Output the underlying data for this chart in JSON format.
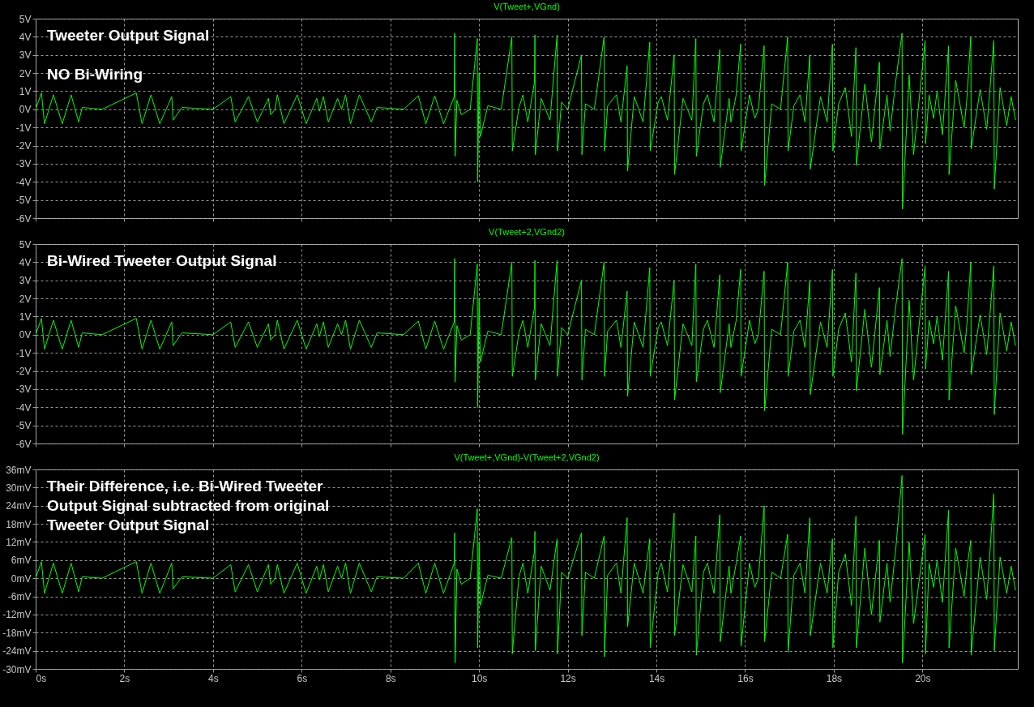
{
  "chart_data": [
    {
      "type": "line",
      "title": "V(Tweet+,VGnd)",
      "annotations": [
        "Tweeter Output Signal",
        "NO Bi-Wiring"
      ],
      "grid": true,
      "tick_labels": "y",
      "xlim": [
        0,
        22.15
      ],
      "xticks": [
        {
          "value": 0,
          "label": null
        },
        {
          "value": 2,
          "label": null
        },
        {
          "value": 4,
          "label": null
        },
        {
          "value": 6,
          "label": null
        },
        {
          "value": 8,
          "label": null
        },
        {
          "value": 10,
          "label": null
        },
        {
          "value": 12,
          "label": null
        },
        {
          "value": 14,
          "label": null
        },
        {
          "value": 16,
          "label": null
        },
        {
          "value": 18,
          "label": null
        },
        {
          "value": 20,
          "label": null
        }
      ],
      "ylim": [
        -6,
        5
      ],
      "yticks": [
        {
          "value": 5,
          "label": "5V"
        },
        {
          "value": 4,
          "label": "4V"
        },
        {
          "value": 3,
          "label": "3V"
        },
        {
          "value": 2,
          "label": "2V"
        },
        {
          "value": 1,
          "label": "1V"
        },
        {
          "value": 0,
          "label": "0V"
        },
        {
          "value": -1,
          "label": "-1V"
        },
        {
          "value": -2,
          "label": "-2V"
        },
        {
          "value": -3,
          "label": "-3V"
        },
        {
          "value": -4,
          "label": "-4V"
        },
        {
          "value": -5,
          "label": "-5V"
        },
        {
          "value": -6,
          "label": "-6V"
        }
      ],
      "x": [
        0,
        0.13,
        0.2,
        0.4,
        0.6,
        0.8,
        0.97,
        1.05,
        1.5,
        2.27,
        2.4,
        2.6,
        2.8,
        3.07,
        3.1,
        3.3,
        4.0,
        4.4,
        4.5,
        4.8,
        5.0,
        5.25,
        5.3,
        5.4,
        5.45,
        5.6,
        5.9,
        6.1,
        6.34,
        6.4,
        6.49,
        6.6,
        6.81,
        6.9,
        6.99,
        7.1,
        7.3,
        7.57,
        7.7,
        8.3,
        8.63,
        8.8,
        9.0,
        9.2,
        9.44,
        9.45,
        9.46,
        9.5,
        9.6,
        9.8,
        9.96,
        9.97,
        10.0,
        10.03,
        10.2,
        10.5,
        10.74,
        10.75,
        10.9,
        10.99,
        11.1,
        11.25,
        11.26,
        11.27,
        11.4,
        11.6,
        11.76,
        11.77,
        11.86,
        12.0,
        12.31,
        12.32,
        12.4,
        12.6,
        12.82,
        12.83,
        12.9,
        13.1,
        13.2,
        13.34,
        13.35,
        13.5,
        13.7,
        13.85,
        13.86,
        14.04,
        14.11,
        14.25,
        14.4,
        14.41,
        14.6,
        14.8,
        14.89,
        14.9,
        15.06,
        15.15,
        15.3,
        15.43,
        15.44,
        15.64,
        15.68,
        15.8,
        15.9,
        15.91,
        16.1,
        16.22,
        16.3,
        16.43,
        16.44,
        16.6,
        16.8,
        16.96,
        16.97,
        17.1,
        17.24,
        17.35,
        17.46,
        17.47,
        17.7,
        17.85,
        17.97,
        17.98,
        18.11,
        18.26,
        18.4,
        18.5,
        18.51,
        18.7,
        18.85,
        19.03,
        19.04,
        19.2,
        19.27,
        19.4,
        19.54,
        19.55,
        19.7,
        19.8,
        20.06,
        20.07,
        20.15,
        20.25,
        20.33,
        20.45,
        20.59,
        20.6,
        20.75,
        20.94,
        21.0,
        21.09,
        21.1,
        21.3,
        21.45,
        21.61,
        21.62,
        21.75,
        21.9,
        22.0,
        22.1
      ],
      "series": [
        {
          "color": "#00ff00",
          "values": [
            0,
            0.9,
            -0.8,
            0.8,
            -0.8,
            0.8,
            -0.7,
            0.1,
            0,
            0.9,
            -0.8,
            0.8,
            -0.8,
            0.7,
            -0.6,
            0.1,
            0,
            0.7,
            -0.7,
            0.7,
            -0.7,
            0.6,
            -0.3,
            0,
            0.8,
            -0.8,
            0.8,
            -0.8,
            0.6,
            -0.1,
            0.7,
            -0.7,
            0.6,
            0,
            0.8,
            -0.8,
            0.8,
            -0.7,
            0.1,
            0,
            0.75,
            -0.8,
            0.75,
            -0.8,
            0.7,
            4.2,
            -2.6,
            0.5,
            -0.3,
            0,
            3.9,
            -4.0,
            2.0,
            -1.5,
            0.2,
            0,
            4.0,
            -2.3,
            0.1,
            0.8,
            -0.7,
            1.5,
            4.1,
            -2.5,
            0.6,
            -0.6,
            4.1,
            -2.3,
            0.4,
            0,
            3.0,
            -2.5,
            0.3,
            0,
            4.0,
            -2.3,
            0.2,
            0.8,
            -0.7,
            2.4,
            -3.4,
            0.7,
            -0.7,
            3.7,
            -2.3,
            0.4,
            0.7,
            -0.6,
            3.0,
            -3.6,
            0.6,
            -0.6,
            3.9,
            -2.6,
            0.3,
            0.8,
            -0.7,
            3.3,
            -3.2,
            0.6,
            -0.7,
            0.8,
            3.6,
            -2.3,
            0.8,
            -0.5,
            0,
            3.5,
            -4.2,
            0.3,
            0,
            4.0,
            -2.3,
            0.2,
            0.8,
            -0.7,
            3.0,
            -3.3,
            0.7,
            -0.7,
            3.6,
            -2.3,
            0.3,
            1.2,
            -1.5,
            3.4,
            -3.1,
            1.4,
            -1.8,
            2.6,
            -2.2,
            0.8,
            -1.2,
            1.6,
            4.2,
            -5.5,
            1.9,
            -2.5,
            3.8,
            -1.9,
            0.8,
            -0.5,
            1.0,
            -1.4,
            3.5,
            -3.6,
            1.6,
            -1.0,
            0.5,
            4.0,
            -2.2,
            1.1,
            -1.1,
            3.8,
            -4.4,
            1.2,
            -0.9,
            0.7,
            -0.6
          ]
        }
      ]
    },
    {
      "type": "line",
      "title": "V(Tweet+2,VGnd2)",
      "annotations": [
        "Bi-Wired Tweeter Output Signal"
      ],
      "grid": true,
      "tick_labels": "y",
      "xlim": [
        0,
        22.15
      ],
      "xticks": [
        {
          "value": 0,
          "label": null
        },
        {
          "value": 2,
          "label": null
        },
        {
          "value": 4,
          "label": null
        },
        {
          "value": 6,
          "label": null
        },
        {
          "value": 8,
          "label": null
        },
        {
          "value": 10,
          "label": null
        },
        {
          "value": 12,
          "label": null
        },
        {
          "value": 14,
          "label": null
        },
        {
          "value": 16,
          "label": null
        },
        {
          "value": 18,
          "label": null
        },
        {
          "value": 20,
          "label": null
        }
      ],
      "ylim": [
        -6,
        5
      ],
      "yticks": [
        {
          "value": 5,
          "label": "5V"
        },
        {
          "value": 4,
          "label": "4V"
        },
        {
          "value": 3,
          "label": "3V"
        },
        {
          "value": 2,
          "label": "2V"
        },
        {
          "value": 1,
          "label": "1V"
        },
        {
          "value": 0,
          "label": "0V"
        },
        {
          "value": -1,
          "label": "-1V"
        },
        {
          "value": -2,
          "label": "-2V"
        },
        {
          "value": -3,
          "label": "-3V"
        },
        {
          "value": -4,
          "label": "-4V"
        },
        {
          "value": -5,
          "label": "-5V"
        },
        {
          "value": -6,
          "label": "-6V"
        }
      ],
      "x": [
        0,
        0.13,
        0.2,
        0.4,
        0.6,
        0.8,
        0.97,
        1.05,
        1.5,
        2.27,
        2.4,
        2.6,
        2.8,
        3.07,
        3.1,
        3.3,
        4.0,
        4.4,
        4.5,
        4.8,
        5.0,
        5.25,
        5.3,
        5.4,
        5.45,
        5.6,
        5.9,
        6.1,
        6.34,
        6.4,
        6.49,
        6.6,
        6.81,
        6.9,
        6.99,
        7.1,
        7.3,
        7.57,
        7.7,
        8.3,
        8.63,
        8.8,
        9.0,
        9.2,
        9.44,
        9.45,
        9.46,
        9.5,
        9.6,
        9.8,
        9.96,
        9.97,
        10.0,
        10.03,
        10.2,
        10.5,
        10.74,
        10.75,
        10.9,
        10.99,
        11.1,
        11.25,
        11.26,
        11.27,
        11.4,
        11.6,
        11.76,
        11.77,
        11.86,
        12.0,
        12.31,
        12.32,
        12.4,
        12.6,
        12.82,
        12.83,
        12.9,
        13.1,
        13.2,
        13.34,
        13.35,
        13.5,
        13.7,
        13.85,
        13.86,
        14.04,
        14.11,
        14.25,
        14.4,
        14.41,
        14.6,
        14.8,
        14.89,
        14.9,
        15.06,
        15.15,
        15.3,
        15.43,
        15.44,
        15.64,
        15.68,
        15.8,
        15.9,
        15.91,
        16.1,
        16.22,
        16.3,
        16.43,
        16.44,
        16.6,
        16.8,
        16.96,
        16.97,
        17.1,
        17.24,
        17.35,
        17.46,
        17.47,
        17.7,
        17.85,
        17.97,
        17.98,
        18.11,
        18.26,
        18.4,
        18.5,
        18.51,
        18.7,
        18.85,
        19.03,
        19.04,
        19.2,
        19.27,
        19.4,
        19.54,
        19.55,
        19.7,
        19.8,
        20.06,
        20.07,
        20.15,
        20.25,
        20.33,
        20.45,
        20.59,
        20.6,
        20.75,
        20.94,
        21.0,
        21.09,
        21.1,
        21.3,
        21.45,
        21.61,
        21.62,
        21.75,
        21.9,
        22.0,
        22.1
      ],
      "series": [
        {
          "color": "#00ff00",
          "values": [
            0,
            0.9,
            -0.8,
            0.8,
            -0.8,
            0.8,
            -0.7,
            0.1,
            0,
            0.9,
            -0.8,
            0.8,
            -0.8,
            0.7,
            -0.6,
            0.1,
            0,
            0.7,
            -0.7,
            0.7,
            -0.7,
            0.6,
            -0.3,
            0,
            0.8,
            -0.8,
            0.8,
            -0.8,
            0.6,
            -0.1,
            0.7,
            -0.7,
            0.6,
            0,
            0.8,
            -0.8,
            0.8,
            -0.7,
            0.1,
            0,
            0.75,
            -0.8,
            0.75,
            -0.8,
            0.7,
            4.2,
            -2.6,
            0.5,
            -0.3,
            0,
            3.9,
            -4.0,
            2.0,
            -1.5,
            0.2,
            0,
            4.0,
            -2.3,
            0.1,
            0.8,
            -0.7,
            1.5,
            4.1,
            -2.5,
            0.6,
            -0.6,
            4.1,
            -2.3,
            0.4,
            0,
            3.0,
            -2.5,
            0.3,
            0,
            4.0,
            -2.3,
            0.2,
            0.8,
            -0.7,
            2.4,
            -3.4,
            0.7,
            -0.7,
            3.7,
            -2.3,
            0.4,
            0.7,
            -0.6,
            3.0,
            -3.6,
            0.6,
            -0.6,
            3.9,
            -2.6,
            0.3,
            0.8,
            -0.7,
            3.3,
            -3.2,
            0.6,
            -0.7,
            0.8,
            3.6,
            -2.3,
            0.8,
            -0.5,
            0,
            3.5,
            -4.2,
            0.3,
            0,
            4.0,
            -2.3,
            0.2,
            0.8,
            -0.7,
            3.0,
            -3.3,
            0.7,
            -0.7,
            3.6,
            -2.3,
            0.3,
            1.2,
            -1.5,
            3.4,
            -3.1,
            1.4,
            -1.8,
            2.6,
            -2.2,
            0.8,
            -1.2,
            1.6,
            4.2,
            -5.5,
            1.9,
            -2.5,
            3.8,
            -1.9,
            0.8,
            -0.5,
            1.0,
            -1.4,
            3.5,
            -3.6,
            1.6,
            -1.0,
            0.5,
            4.0,
            -2.2,
            1.1,
            -1.1,
            3.8,
            -4.4,
            1.2,
            -0.9,
            0.7,
            -0.6
          ]
        }
      ]
    },
    {
      "type": "line",
      "title": "V(Tweet+,VGnd)-V(Tweet+2,VGnd2)",
      "annotations": [
        "Their Difference, i.e. Bi-Wired Tweeter",
        "Output Signal subtracted from original",
        "Tweeter Output Signal"
      ],
      "grid": true,
      "xlim": [
        0,
        22.15
      ],
      "xticks": [
        {
          "value": 0,
          "label": "0s"
        },
        {
          "value": 2,
          "label": "2s"
        },
        {
          "value": 4,
          "label": "4s"
        },
        {
          "value": 6,
          "label": "6s"
        },
        {
          "value": 8,
          "label": "8s"
        },
        {
          "value": 10,
          "label": "10s"
        },
        {
          "value": 12,
          "label": "12s"
        },
        {
          "value": 14,
          "label": "14s"
        },
        {
          "value": 16,
          "label": "16s"
        },
        {
          "value": 18,
          "label": "18s"
        },
        {
          "value": 20,
          "label": "20s"
        }
      ],
      "ylim": [
        -30,
        36
      ],
      "yticks": [
        {
          "value": 36,
          "label": "36mV"
        },
        {
          "value": 30,
          "label": "30mV"
        },
        {
          "value": 24,
          "label": "24mV"
        },
        {
          "value": 18,
          "label": "18mV"
        },
        {
          "value": 12,
          "label": "12mV"
        },
        {
          "value": 6,
          "label": "6mV"
        },
        {
          "value": 0,
          "label": "0mV"
        },
        {
          "value": -6,
          "label": "-6mV"
        },
        {
          "value": -12,
          "label": "-12mV"
        },
        {
          "value": -18,
          "label": "-18mV"
        },
        {
          "value": -24,
          "label": "-24mV"
        },
        {
          "value": -30,
          "label": "-30mV"
        }
      ],
      "x": [
        0,
        0.13,
        0.2,
        0.4,
        0.6,
        0.8,
        0.97,
        1.05,
        1.5,
        2.27,
        2.4,
        2.6,
        2.8,
        3.07,
        3.1,
        3.3,
        4.0,
        4.4,
        4.5,
        4.8,
        5.0,
        5.25,
        5.3,
        5.4,
        5.45,
        5.6,
        5.9,
        6.1,
        6.34,
        6.4,
        6.49,
        6.6,
        6.81,
        6.9,
        6.99,
        7.1,
        7.3,
        7.57,
        7.7,
        8.3,
        8.63,
        8.8,
        9.0,
        9.2,
        9.44,
        9.45,
        9.46,
        9.5,
        9.6,
        9.8,
        9.96,
        9.97,
        10.0,
        10.03,
        10.2,
        10.5,
        10.74,
        10.75,
        10.9,
        10.99,
        11.1,
        11.25,
        11.26,
        11.27,
        11.4,
        11.6,
        11.76,
        11.77,
        11.86,
        12.0,
        12.31,
        12.32,
        12.4,
        12.6,
        12.82,
        12.83,
        12.9,
        13.1,
        13.2,
        13.34,
        13.35,
        13.5,
        13.7,
        13.85,
        13.86,
        14.04,
        14.11,
        14.25,
        14.4,
        14.41,
        14.6,
        14.8,
        14.89,
        14.9,
        15.06,
        15.15,
        15.3,
        15.43,
        15.44,
        15.64,
        15.68,
        15.8,
        15.9,
        15.91,
        16.1,
        16.22,
        16.3,
        16.43,
        16.44,
        16.6,
        16.8,
        16.96,
        16.97,
        17.1,
        17.24,
        17.35,
        17.46,
        17.47,
        17.7,
        17.85,
        17.97,
        17.98,
        18.11,
        18.26,
        18.4,
        18.5,
        18.51,
        18.7,
        18.85,
        19.03,
        19.04,
        19.2,
        19.27,
        19.4,
        19.54,
        19.55,
        19.7,
        19.8,
        20.06,
        20.07,
        20.15,
        20.25,
        20.33,
        20.45,
        20.59,
        20.6,
        20.75,
        20.94,
        21.0,
        21.09,
        21.1,
        21.3,
        21.45,
        21.61,
        21.62,
        21.75,
        21.9,
        22.0,
        22.1
      ],
      "series": [
        {
          "color": "#00ff00",
          "values": [
            0,
            5.5,
            -5,
            5,
            -5,
            5,
            -4.5,
            0.5,
            0,
            5.5,
            -5,
            5,
            -5,
            5,
            -3.5,
            0.5,
            0,
            4.5,
            -4.5,
            4.5,
            -4.5,
            4.5,
            -2,
            0,
            4.5,
            -5,
            5,
            -5,
            4,
            -0.5,
            4.5,
            -4.5,
            4,
            0,
            5,
            -5,
            5,
            -4.5,
            0.5,
            0,
            5,
            -5,
            5,
            -5,
            5,
            15,
            -28,
            3,
            -2,
            0,
            23,
            -23,
            12,
            -9,
            1,
            0,
            13.5,
            -25,
            0.5,
            5,
            -5,
            9,
            15.5,
            -24,
            4,
            -4,
            13,
            -25,
            2,
            0,
            15,
            -19,
            2,
            0,
            14,
            -26,
            1,
            5,
            -5,
            20,
            -16,
            5,
            -5,
            13,
            -23,
            2,
            5,
            -4.5,
            21.5,
            -19,
            4.5,
            -4.5,
            14,
            -25.5,
            2,
            5,
            -5,
            21,
            -21,
            4,
            -5,
            5,
            14,
            -22.5,
            5,
            -3,
            0,
            24,
            -21,
            2,
            0,
            14.5,
            -24.5,
            1,
            5,
            -5,
            20,
            -19,
            5,
            -5,
            13,
            -23,
            2,
            8,
            -9,
            20.5,
            -23,
            10,
            -12,
            12.5,
            -14.5,
            5,
            -8,
            10,
            34,
            -28,
            12,
            -15,
            14.5,
            -25,
            5,
            -3,
            6,
            -8,
            22.5,
            -23,
            10,
            -6,
            3,
            12.5,
            -25.5,
            7,
            -7,
            28,
            -24,
            7,
            -5,
            4,
            -4
          ]
        }
      ]
    }
  ]
}
